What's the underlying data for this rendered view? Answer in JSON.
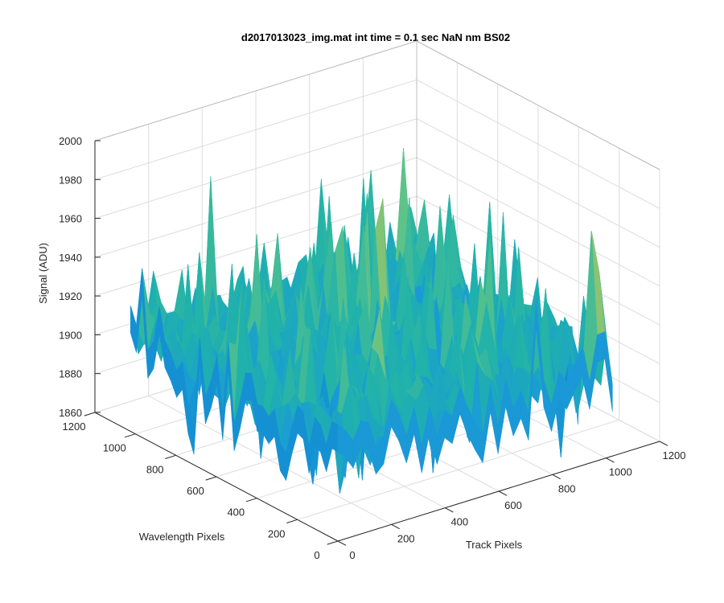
{
  "chart_data": {
    "type": "surface",
    "title": "d2017013023_img.mat int time = 0.1 sec  NaN nm BS02",
    "xlabel": "Track Pixels",
    "ylabel": "Wavelength Pixels",
    "zlabel": "Signal (ADU)",
    "xlim": [
      0,
      1200
    ],
    "ylim": [
      0,
      1200
    ],
    "zlim": [
      1860,
      2000
    ],
    "x_ticks": [
      "0",
      "200",
      "400",
      "600",
      "800",
      "1000",
      "1200"
    ],
    "y_ticks": [
      "0",
      "200",
      "400",
      "600",
      "800",
      "1000",
      "1200"
    ],
    "z_ticks": [
      "1860",
      "1880",
      "1900",
      "1920",
      "1940",
      "1960",
      "1980",
      "2000"
    ],
    "surface_extent": {
      "x": [
        0,
        1024
      ],
      "y": [
        0,
        1024
      ]
    },
    "signal_mean": 1910,
    "signal_range": [
      1865,
      1990
    ],
    "grid": true,
    "colormap": [
      "#0072bd",
      "#1a9bd7",
      "#20b2aa",
      "#5cc389",
      "#bcc45a"
    ]
  }
}
